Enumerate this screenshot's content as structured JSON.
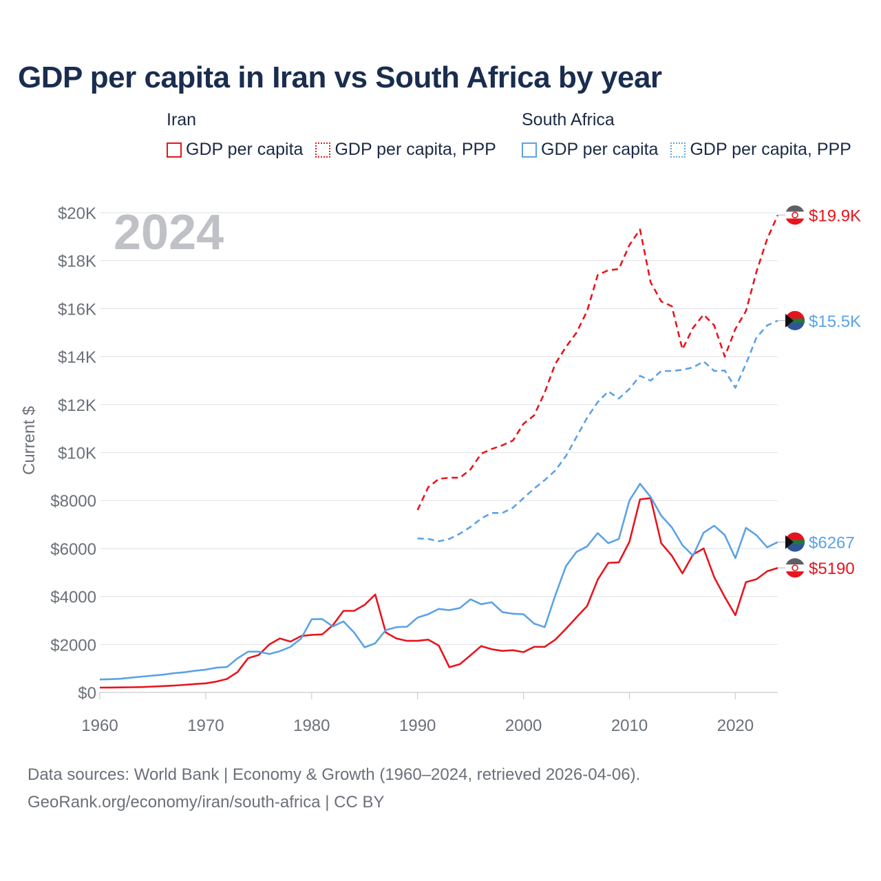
{
  "title": "GDP per capita in Iran vs South Africa by year",
  "legend": {
    "groups": [
      {
        "name": "Iran",
        "color": "#e8141c",
        "items": [
          {
            "label": "GDP per capita",
            "style": "solid"
          },
          {
            "label": "GDP per capita, PPP",
            "style": "dotted"
          }
        ]
      },
      {
        "name": "South Africa",
        "color": "#5aa2e6",
        "items": [
          {
            "label": "GDP per capita",
            "style": "solid"
          },
          {
            "label": "GDP per capita, PPP",
            "style": "dotted"
          }
        ]
      }
    ]
  },
  "footer": {
    "line1": "Data sources: World Bank | Economy & Growth (1960–2024, retrieved 2026-04-06).",
    "line2": "GeoRank.org/economy/iran/south-africa | CC BY"
  },
  "chart_data": {
    "type": "line",
    "year_label": "2024",
    "ylabel": "Current $",
    "xlim": [
      1960,
      2024
    ],
    "ylim": [
      0,
      20000
    ],
    "x_ticks": [
      1960,
      1970,
      1980,
      1990,
      2000,
      2010,
      2020
    ],
    "x_tick_labels": [
      "1960",
      "1970",
      "1980",
      "1990",
      "2000",
      "2010",
      "2020"
    ],
    "y_ticks": [
      0,
      2000,
      4000,
      6000,
      8000,
      10000,
      12000,
      14000,
      16000,
      18000,
      20000
    ],
    "y_tick_labels": [
      "$0",
      "$2000",
      "$4000",
      "$6000",
      "$8000",
      "$10K",
      "$12K",
      "$14K",
      "$16K",
      "$18K",
      "$20K"
    ],
    "grid": true,
    "series": [
      {
        "name": "Iran GDP per capita",
        "country": "Iran",
        "color": "#e8141c",
        "dash": "solid",
        "end_label": "$5190",
        "x": [
          1960,
          1961,
          1962,
          1963,
          1964,
          1965,
          1966,
          1967,
          1968,
          1969,
          1970,
          1971,
          1972,
          1973,
          1974,
          1975,
          1976,
          1977,
          1978,
          1979,
          1980,
          1981,
          1982,
          1983,
          1984,
          1985,
          1986,
          1987,
          1988,
          1989,
          1990,
          1991,
          1992,
          1993,
          1994,
          1995,
          1996,
          1997,
          1998,
          1999,
          2000,
          2001,
          2002,
          2003,
          2004,
          2005,
          2006,
          2007,
          2008,
          2009,
          2010,
          2011,
          2012,
          2013,
          2014,
          2015,
          2016,
          2017,
          2018,
          2019,
          2020,
          2021,
          2022,
          2023,
          2024
        ],
        "values": [
          200,
          205,
          210,
          215,
          225,
          245,
          265,
          285,
          315,
          350,
          380,
          450,
          560,
          850,
          1430,
          1560,
          2000,
          2250,
          2120,
          2350,
          2400,
          2420,
          2800,
          3400,
          3400,
          3650,
          4080,
          2500,
          2250,
          2150,
          2150,
          2200,
          1950,
          1050,
          1180,
          1550,
          1930,
          1800,
          1730,
          1760,
          1680,
          1900,
          1900,
          2200,
          2650,
          3130,
          3600,
          4700,
          5400,
          5420,
          6280,
          8050,
          8100,
          6220,
          5700,
          4960,
          5750,
          6000,
          4800,
          3980,
          3220,
          4600,
          4720,
          5050,
          5190
        ]
      },
      {
        "name": "Iran GDP per capita, PPP",
        "country": "Iran",
        "color": "#e8141c",
        "dash": "dashed",
        "end_label": "$19.9K",
        "x": [
          1990,
          1991,
          1992,
          1993,
          1994,
          1995,
          1996,
          1997,
          1998,
          1999,
          2000,
          2001,
          2002,
          2003,
          2004,
          2005,
          2006,
          2007,
          2008,
          2009,
          2010,
          2011,
          2012,
          2013,
          2014,
          2015,
          2016,
          2017,
          2018,
          2019,
          2020,
          2021,
          2022,
          2023,
          2024
        ],
        "values": [
          7600,
          8550,
          8900,
          8950,
          8950,
          9300,
          9950,
          10150,
          10300,
          10500,
          11200,
          11550,
          12500,
          13700,
          14400,
          15000,
          15900,
          17400,
          17600,
          17650,
          18650,
          19300,
          17100,
          16300,
          16100,
          14300,
          15200,
          15750,
          15300,
          14000,
          15150,
          15900,
          17550,
          18900,
          19900
        ]
      },
      {
        "name": "South Africa GDP per capita",
        "country": "South Africa",
        "color": "#5aa2e6",
        "dash": "solid",
        "end_label": "$6267",
        "x": [
          1960,
          1961,
          1962,
          1963,
          1964,
          1965,
          1966,
          1967,
          1968,
          1969,
          1970,
          1971,
          1972,
          1973,
          1974,
          1975,
          1976,
          1977,
          1978,
          1979,
          1980,
          1981,
          1982,
          1983,
          1984,
          1985,
          1986,
          1987,
          1988,
          1989,
          1990,
          1991,
          1992,
          1993,
          1994,
          1995,
          1996,
          1997,
          1998,
          1999,
          2000,
          2001,
          2002,
          2003,
          2004,
          2005,
          2006,
          2007,
          2008,
          2009,
          2010,
          2011,
          2012,
          2013,
          2014,
          2015,
          2016,
          2017,
          2018,
          2019,
          2020,
          2021,
          2022,
          2023,
          2024
        ],
        "values": [
          540,
          550,
          570,
          620,
          660,
          700,
          740,
          800,
          840,
          900,
          950,
          1030,
          1060,
          1420,
          1700,
          1700,
          1600,
          1720,
          1900,
          2240,
          3050,
          3060,
          2750,
          2960,
          2500,
          1880,
          2050,
          2600,
          2720,
          2740,
          3120,
          3260,
          3480,
          3430,
          3520,
          3880,
          3680,
          3760,
          3350,
          3280,
          3260,
          2870,
          2720,
          4050,
          5260,
          5860,
          6090,
          6640,
          6220,
          6400,
          8000,
          8700,
          8150,
          7370,
          6880,
          6140,
          5700,
          6660,
          6950,
          6560,
          5600,
          6860,
          6550,
          6050,
          6267
        ]
      },
      {
        "name": "South Africa GDP per capita, PPP",
        "country": "South Africa",
        "color": "#5aa2e6",
        "dash": "dashed",
        "end_label": "$15.5K",
        "x": [
          1990,
          1991,
          1992,
          1993,
          1994,
          1995,
          1996,
          1997,
          1998,
          1999,
          2000,
          2001,
          2002,
          2003,
          2004,
          2005,
          2006,
          2007,
          2008,
          2009,
          2010,
          2011,
          2012,
          2013,
          2014,
          2015,
          2016,
          2017,
          2018,
          2019,
          2020,
          2021,
          2022,
          2023,
          2024
        ],
        "values": [
          6420,
          6400,
          6300,
          6400,
          6620,
          6900,
          7250,
          7480,
          7480,
          7700,
          8100,
          8500,
          8850,
          9250,
          9850,
          10650,
          11450,
          12100,
          12550,
          12250,
          12650,
          13200,
          13000,
          13400,
          13400,
          13450,
          13550,
          13800,
          13400,
          13420,
          12700,
          13700,
          14800,
          15300,
          15500
        ]
      }
    ]
  }
}
